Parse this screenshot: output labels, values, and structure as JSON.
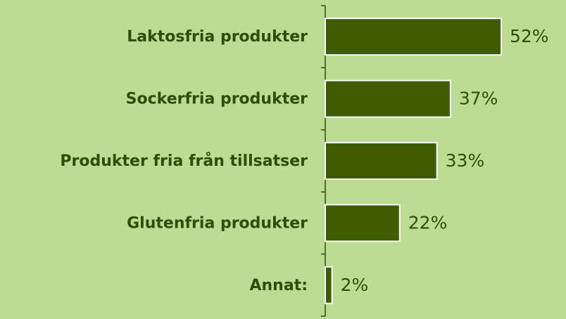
{
  "chart_data": {
    "type": "bar",
    "orientation": "horizontal",
    "categories": [
      "Laktosfria produkter",
      "Sockerfria produkter",
      "Produkter fria från tillsatser",
      "Glutenfria produkter",
      "Annat:"
    ],
    "values": [
      52,
      37,
      33,
      22,
      2
    ],
    "value_labels": [
      "52%",
      "37%",
      "33%",
      "22%",
      "2%"
    ],
    "color": "#3d5c00"
  }
}
